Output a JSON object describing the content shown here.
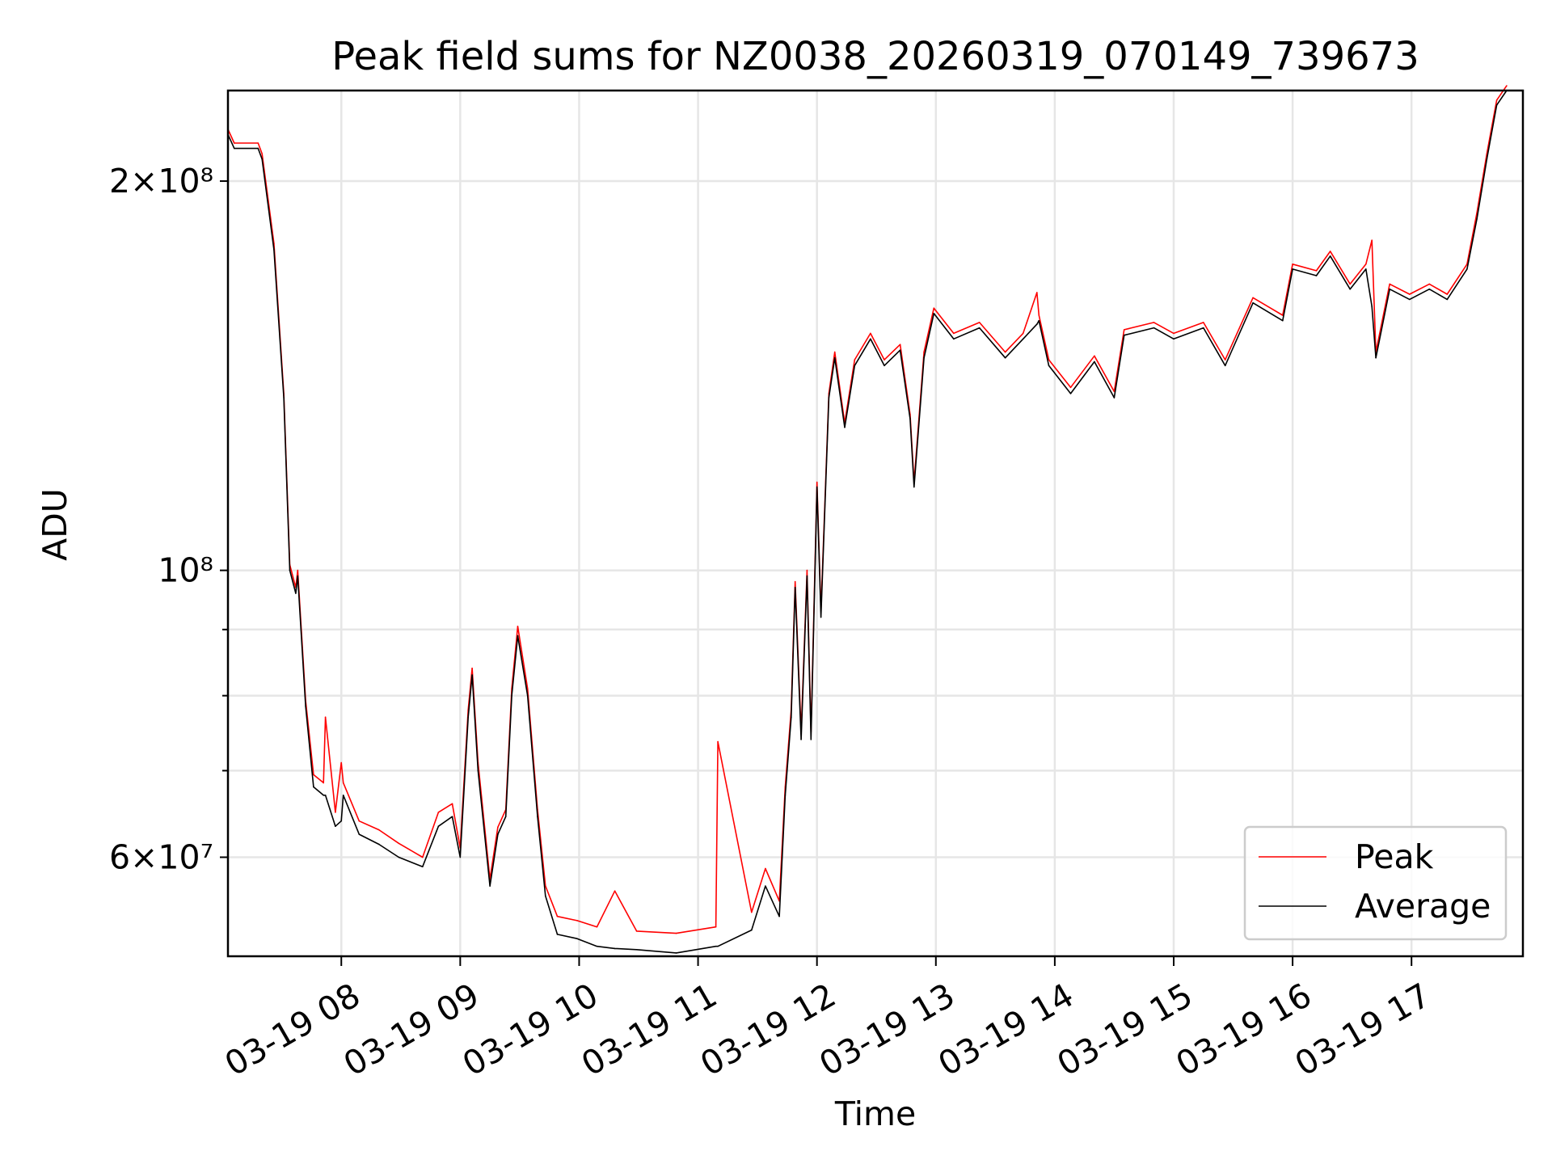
{
  "chart_data": {
    "type": "line",
    "title": "Peak field sums for NZ0038_20260319_070149_739673",
    "xlabel": "Time",
    "ylabel": "ADU",
    "yscale": "log",
    "value_unit_multiplier": 1000000,
    "ylim": [
      50300000,
      235000000
    ],
    "xlim": [
      "07:02.8",
      "17:56.2"
    ],
    "grid": true,
    "legend_position": "lower-right",
    "x_ticks": [
      {
        "hour": 8,
        "label": "03-19 08"
      },
      {
        "hour": 9,
        "label": "03-19 09"
      },
      {
        "hour": 10,
        "label": "03-19 10"
      },
      {
        "hour": 11,
        "label": "03-19 11"
      },
      {
        "hour": 12,
        "label": "03-19 12"
      },
      {
        "hour": 13,
        "label": "03-19 13"
      },
      {
        "hour": 14,
        "label": "03-19 14"
      },
      {
        "hour": 15,
        "label": "03-19 15"
      },
      {
        "hour": 16,
        "label": "03-19 16"
      },
      {
        "hour": 17,
        "label": "03-19 17"
      }
    ],
    "y_ticks": [
      {
        "value": 200000000,
        "label": "2×10⁸"
      },
      {
        "value": 100000000,
        "label": "10⁸"
      },
      {
        "value": 60000000,
        "label": "6×10⁷"
      }
    ],
    "y_minor_gridlines": [
      70000000,
      80000000,
      90000000
    ],
    "x": [
      "07:03",
      "07:06",
      "07:18",
      "07:20",
      "07:26",
      "07:31",
      "07:34",
      "07:37",
      "07:38",
      "07:42",
      "07:46",
      "07:51",
      "07:52",
      "07:57",
      "08:00",
      "08:01",
      "08:09",
      "08:19",
      "08:29",
      "08:41",
      "08:49",
      "08:56",
      "09:00",
      "09:04",
      "09:06",
      "09:09",
      "09:15",
      "09:19",
      "09:23",
      "09:26",
      "09:29",
      "09:34",
      "09:39",
      "09:43",
      "09:49",
      "09:59",
      "10:09",
      "10:18",
      "10:29",
      "10:49",
      "11:09",
      "11:10",
      "11:27",
      "11:34",
      "11:41",
      "11:44",
      "11:47",
      "11:49",
      "11:52",
      "11:55",
      "11:57",
      "12:00",
      "12:02",
      "12:06",
      "12:09",
      "12:14",
      "12:19",
      "12:27",
      "12:34",
      "12:42",
      "12:47",
      "12:49",
      "12:54",
      "12:59",
      "13:09",
      "13:22",
      "13:35",
      "13:44",
      "13:51",
      "13:52",
      "13:57",
      "14:08",
      "14:20",
      "14:30",
      "14:35",
      "14:50",
      "15:00",
      "15:15",
      "15:26",
      "15:40",
      "15:55",
      "16:00",
      "16:12",
      "16:19",
      "16:29",
      "16:37",
      "16:40",
      "16:42",
      "16:49",
      "16:59",
      "17:09",
      "17:18",
      "17:28",
      "17:33",
      "17:38",
      "17:43",
      "17:48"
    ],
    "series": [
      {
        "name": "Peak",
        "color": "#ff0000",
        "values": [
          219,
          214,
          214,
          210,
          179,
          137,
          101,
          97,
          100,
          79.3,
          69.5,
          68.5,
          77,
          65,
          71,
          68.5,
          64,
          63,
          61.5,
          60,
          65,
          66,
          61,
          78,
          84,
          71,
          57.7,
          63.3,
          65.3,
          81,
          90.5,
          81,
          65.3,
          57,
          54,
          53.6,
          53,
          56.5,
          52.6,
          52.4,
          53,
          73.7,
          54.4,
          58.8,
          55.5,
          68,
          78,
          98,
          75,
          100,
          75,
          117,
          93,
          137,
          147.5,
          130,
          145.5,
          152.5,
          145.5,
          149.5,
          132,
          117,
          147.5,
          159.5,
          152.5,
          155.5,
          147.5,
          152.5,
          164,
          157.5,
          145.5,
          138.5,
          146.5,
          137.5,
          153.5,
          155.5,
          152.5,
          155.5,
          145.5,
          162.5,
          157.5,
          172.5,
          170.5,
          176.5,
          166.5,
          172.5,
          180,
          147.5,
          166.5,
          163.5,
          166.5,
          163.5,
          172.5,
          189,
          210,
          231,
          237
        ]
      },
      {
        "name": "Average",
        "color": "#000000",
        "values": [
          217,
          212,
          212,
          208,
          177,
          136,
          100,
          96,
          99,
          78.5,
          68,
          67,
          67,
          63.4,
          64,
          67,
          62.5,
          61.4,
          60,
          59,
          63.4,
          64.5,
          60,
          77,
          83,
          70,
          57,
          62.5,
          64.5,
          80,
          89,
          80,
          64.5,
          56,
          52.3,
          51.9,
          51.2,
          51,
          50.9,
          50.6,
          51.2,
          51.2,
          52.7,
          57,
          54,
          67,
          77,
          97,
          74,
          99,
          74,
          116,
          92,
          136,
          146,
          129,
          144,
          151,
          144,
          148,
          131,
          116,
          146,
          158,
          151,
          154,
          146,
          151,
          155,
          156,
          144,
          137,
          145,
          136,
          152,
          154,
          151,
          154,
          144,
          161,
          156,
          171,
          169,
          175,
          165,
          171,
          160,
          146,
          165,
          162,
          165,
          162,
          171,
          187,
          208,
          229,
          235
        ]
      }
    ]
  }
}
